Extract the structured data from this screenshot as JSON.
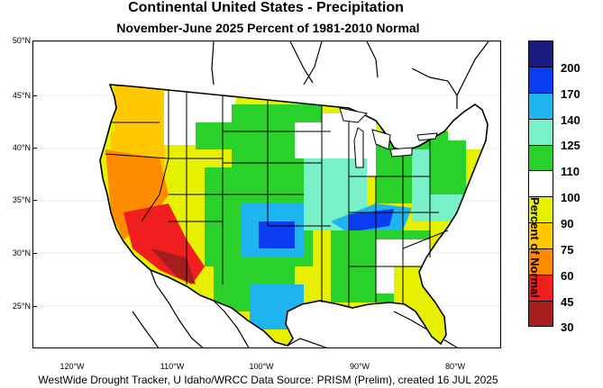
{
  "title": "Continental United States - Precipitation",
  "subtitle": "November-June 2025  Percent of 1981-2010 Normal",
  "footer": "WestWide Drought Tracker, U Idaho/WRCC Data Source: PRISM (Prelim), created 16 JUL 2025",
  "axes": {
    "lat_labels": [
      "50°N",
      "45°N",
      "40°N",
      "35°N",
      "30°N",
      "25°N"
    ],
    "lon_labels": [
      "120°W",
      "110°W",
      "100°W",
      "90°W",
      "80°W"
    ]
  },
  "legend": {
    "title": "Percent of Normal",
    "colors": [
      "#1a1a80",
      "#0a3cf2",
      "#1eb4f0",
      "#78f0c8",
      "#2ad12a",
      "#ffffff",
      "#e6f000",
      "#ffc800",
      "#ff8c00",
      "#f01e1e",
      "#a51e1e"
    ],
    "labels": [
      "200",
      "170",
      "140",
      "125",
      "110",
      "100",
      "90",
      "75",
      "60",
      "45",
      "30"
    ]
  }
}
